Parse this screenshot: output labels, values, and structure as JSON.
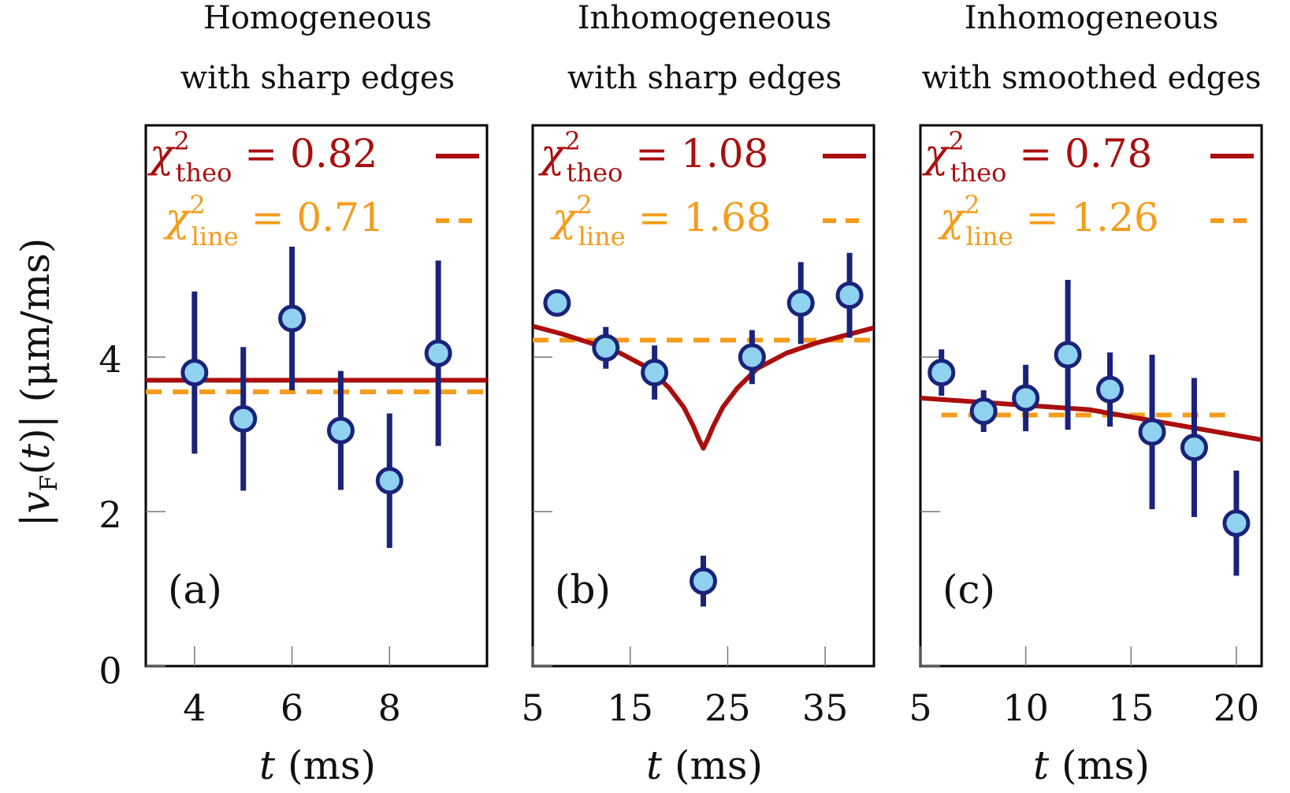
{
  "colors": {
    "theory": "#aa0e0e",
    "line": "#f59c1a",
    "marker_fill": "#8fd2ef",
    "marker_edge": "#1a237a"
  },
  "y_axis": {
    "label": "|v_F(t)| (μm/ms)",
    "ticks": [
      "0",
      "2",
      "4"
    ]
  },
  "chart_data": [
    {
      "type": "scatter",
      "panel_label": "(a)",
      "title_line1": "Homogeneous",
      "title_line2": "with sharp edges",
      "xlabel": "t (ms)",
      "ylim": [
        0,
        7
      ],
      "xlim": [
        3,
        10
      ],
      "xticks": [
        4,
        6,
        8
      ],
      "xtick_labels": [
        "4",
        "6",
        "8"
      ],
      "x": [
        4,
        5,
        6,
        7,
        8,
        9
      ],
      "y": [
        3.8,
        3.2,
        4.5,
        3.05,
        2.4,
        4.05
      ],
      "yerr": [
        1.05,
        0.93,
        0.93,
        0.77,
        0.87,
        1.2
      ],
      "theory_label": "χ²_theo = 0.82",
      "line_label": "χ²_line = 0.71",
      "theory_curve": {
        "x": [
          3,
          10
        ],
        "y": [
          3.7,
          3.7
        ]
      },
      "line_fit": {
        "x": [
          3,
          10
        ],
        "y": [
          3.55,
          3.55
        ]
      }
    },
    {
      "type": "scatter",
      "panel_label": "(b)",
      "title_line1": "Inhomogeneous",
      "title_line2": "with sharp edges",
      "xlabel": "t (ms)",
      "ylim": [
        0,
        7
      ],
      "xlim": [
        5,
        40
      ],
      "xticks": [
        5,
        15,
        25,
        35
      ],
      "xtick_labels": [
        "5",
        "15",
        "25",
        "35"
      ],
      "x": [
        7.5,
        12.5,
        17.5,
        22.5,
        27.5,
        32.5,
        37.5
      ],
      "y": [
        4.7,
        4.12,
        3.8,
        1.1,
        4.0,
        4.7,
        4.8
      ],
      "yerr": [
        0.15,
        0.27,
        0.35,
        0.33,
        0.35,
        0.53,
        0.55
      ],
      "theory_label": "χ²_theo = 1.08",
      "line_label": "χ²_line = 1.68",
      "theory_curve": {
        "x": [
          5,
          8,
          11,
          14,
          17,
          19,
          20.5,
          21.5,
          22,
          22.5,
          23,
          23.5,
          24.5,
          26,
          28,
          31,
          34,
          37,
          40
        ],
        "y": [
          4.4,
          4.3,
          4.18,
          4.05,
          3.85,
          3.6,
          3.35,
          3.1,
          2.95,
          2.82,
          2.95,
          3.1,
          3.35,
          3.6,
          3.85,
          4.05,
          4.18,
          4.28,
          4.38
        ]
      },
      "line_fit": {
        "x": [
          5,
          40
        ],
        "y": [
          4.22,
          4.22
        ]
      }
    },
    {
      "type": "scatter",
      "panel_label": "(c)",
      "title_line1": "Inhomogeneous",
      "title_line2": "with smoothed edges",
      "xlabel": "t (ms)",
      "ylim": [
        0,
        7
      ],
      "xlim": [
        5,
        21.2
      ],
      "xticks": [
        5,
        10,
        15,
        20
      ],
      "xtick_labels": [
        "5",
        "10",
        "15",
        "20"
      ],
      "x": [
        6,
        8,
        10,
        12,
        14,
        16,
        18,
        20
      ],
      "y": [
        3.8,
        3.3,
        3.47,
        4.03,
        3.58,
        3.03,
        2.83,
        1.85
      ],
      "yerr": [
        0.3,
        0.27,
        0.43,
        0.97,
        0.48,
        1.0,
        0.9,
        0.68
      ],
      "theory_label": "χ²_theo = 0.78",
      "line_label": "χ²_line = 1.26",
      "theory_curve": {
        "x": [
          5,
          13,
          21.2
        ],
        "y": [
          3.47,
          3.32,
          2.93
        ]
      },
      "line_fit": {
        "x": [
          6,
          20
        ],
        "y": [
          3.25,
          3.25
        ]
      }
    }
  ]
}
